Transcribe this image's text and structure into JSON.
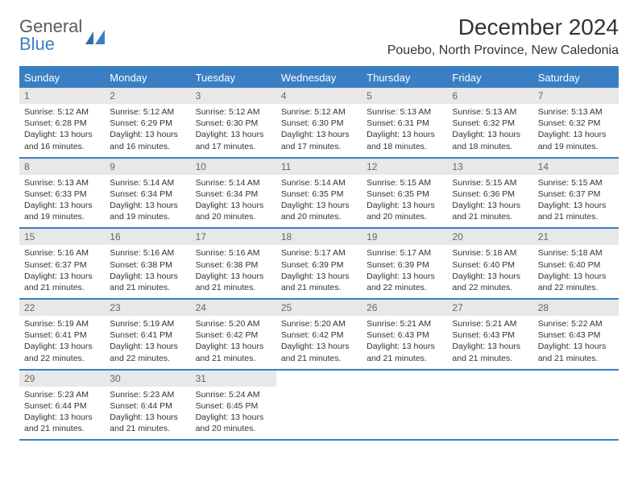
{
  "brand": {
    "line1": "General",
    "line2": "Blue"
  },
  "title": "December 2024",
  "location": "Pouebo, North Province, New Caledonia",
  "colors": {
    "accent": "#3a7fc4",
    "header_bg": "#3a7fc4",
    "daynum_bg": "#e8e8e8",
    "text": "#333333",
    "brand_gray": "#5a5a5a"
  },
  "weekdays": [
    "Sunday",
    "Monday",
    "Tuesday",
    "Wednesday",
    "Thursday",
    "Friday",
    "Saturday"
  ],
  "weeks": [
    [
      {
        "n": "1",
        "sr": "5:12 AM",
        "ss": "6:28 PM",
        "dl": "13 hours and 16 minutes."
      },
      {
        "n": "2",
        "sr": "5:12 AM",
        "ss": "6:29 PM",
        "dl": "13 hours and 16 minutes."
      },
      {
        "n": "3",
        "sr": "5:12 AM",
        "ss": "6:30 PM",
        "dl": "13 hours and 17 minutes."
      },
      {
        "n": "4",
        "sr": "5:12 AM",
        "ss": "6:30 PM",
        "dl": "13 hours and 17 minutes."
      },
      {
        "n": "5",
        "sr": "5:13 AM",
        "ss": "6:31 PM",
        "dl": "13 hours and 18 minutes."
      },
      {
        "n": "6",
        "sr": "5:13 AM",
        "ss": "6:32 PM",
        "dl": "13 hours and 18 minutes."
      },
      {
        "n": "7",
        "sr": "5:13 AM",
        "ss": "6:32 PM",
        "dl": "13 hours and 19 minutes."
      }
    ],
    [
      {
        "n": "8",
        "sr": "5:13 AM",
        "ss": "6:33 PM",
        "dl": "13 hours and 19 minutes."
      },
      {
        "n": "9",
        "sr": "5:14 AM",
        "ss": "6:34 PM",
        "dl": "13 hours and 19 minutes."
      },
      {
        "n": "10",
        "sr": "5:14 AM",
        "ss": "6:34 PM",
        "dl": "13 hours and 20 minutes."
      },
      {
        "n": "11",
        "sr": "5:14 AM",
        "ss": "6:35 PM",
        "dl": "13 hours and 20 minutes."
      },
      {
        "n": "12",
        "sr": "5:15 AM",
        "ss": "6:35 PM",
        "dl": "13 hours and 20 minutes."
      },
      {
        "n": "13",
        "sr": "5:15 AM",
        "ss": "6:36 PM",
        "dl": "13 hours and 21 minutes."
      },
      {
        "n": "14",
        "sr": "5:15 AM",
        "ss": "6:37 PM",
        "dl": "13 hours and 21 minutes."
      }
    ],
    [
      {
        "n": "15",
        "sr": "5:16 AM",
        "ss": "6:37 PM",
        "dl": "13 hours and 21 minutes."
      },
      {
        "n": "16",
        "sr": "5:16 AM",
        "ss": "6:38 PM",
        "dl": "13 hours and 21 minutes."
      },
      {
        "n": "17",
        "sr": "5:16 AM",
        "ss": "6:38 PM",
        "dl": "13 hours and 21 minutes."
      },
      {
        "n": "18",
        "sr": "5:17 AM",
        "ss": "6:39 PM",
        "dl": "13 hours and 21 minutes."
      },
      {
        "n": "19",
        "sr": "5:17 AM",
        "ss": "6:39 PM",
        "dl": "13 hours and 22 minutes."
      },
      {
        "n": "20",
        "sr": "5:18 AM",
        "ss": "6:40 PM",
        "dl": "13 hours and 22 minutes."
      },
      {
        "n": "21",
        "sr": "5:18 AM",
        "ss": "6:40 PM",
        "dl": "13 hours and 22 minutes."
      }
    ],
    [
      {
        "n": "22",
        "sr": "5:19 AM",
        "ss": "6:41 PM",
        "dl": "13 hours and 22 minutes."
      },
      {
        "n": "23",
        "sr": "5:19 AM",
        "ss": "6:41 PM",
        "dl": "13 hours and 22 minutes."
      },
      {
        "n": "24",
        "sr": "5:20 AM",
        "ss": "6:42 PM",
        "dl": "13 hours and 21 minutes."
      },
      {
        "n": "25",
        "sr": "5:20 AM",
        "ss": "6:42 PM",
        "dl": "13 hours and 21 minutes."
      },
      {
        "n": "26",
        "sr": "5:21 AM",
        "ss": "6:43 PM",
        "dl": "13 hours and 21 minutes."
      },
      {
        "n": "27",
        "sr": "5:21 AM",
        "ss": "6:43 PM",
        "dl": "13 hours and 21 minutes."
      },
      {
        "n": "28",
        "sr": "5:22 AM",
        "ss": "6:43 PM",
        "dl": "13 hours and 21 minutes."
      }
    ],
    [
      {
        "n": "29",
        "sr": "5:23 AM",
        "ss": "6:44 PM",
        "dl": "13 hours and 21 minutes."
      },
      {
        "n": "30",
        "sr": "5:23 AM",
        "ss": "6:44 PM",
        "dl": "13 hours and 21 minutes."
      },
      {
        "n": "31",
        "sr": "5:24 AM",
        "ss": "6:45 PM",
        "dl": "13 hours and 20 minutes."
      },
      null,
      null,
      null,
      null
    ]
  ],
  "labels": {
    "sunrise": "Sunrise:",
    "sunset": "Sunset:",
    "daylight": "Daylight:"
  }
}
